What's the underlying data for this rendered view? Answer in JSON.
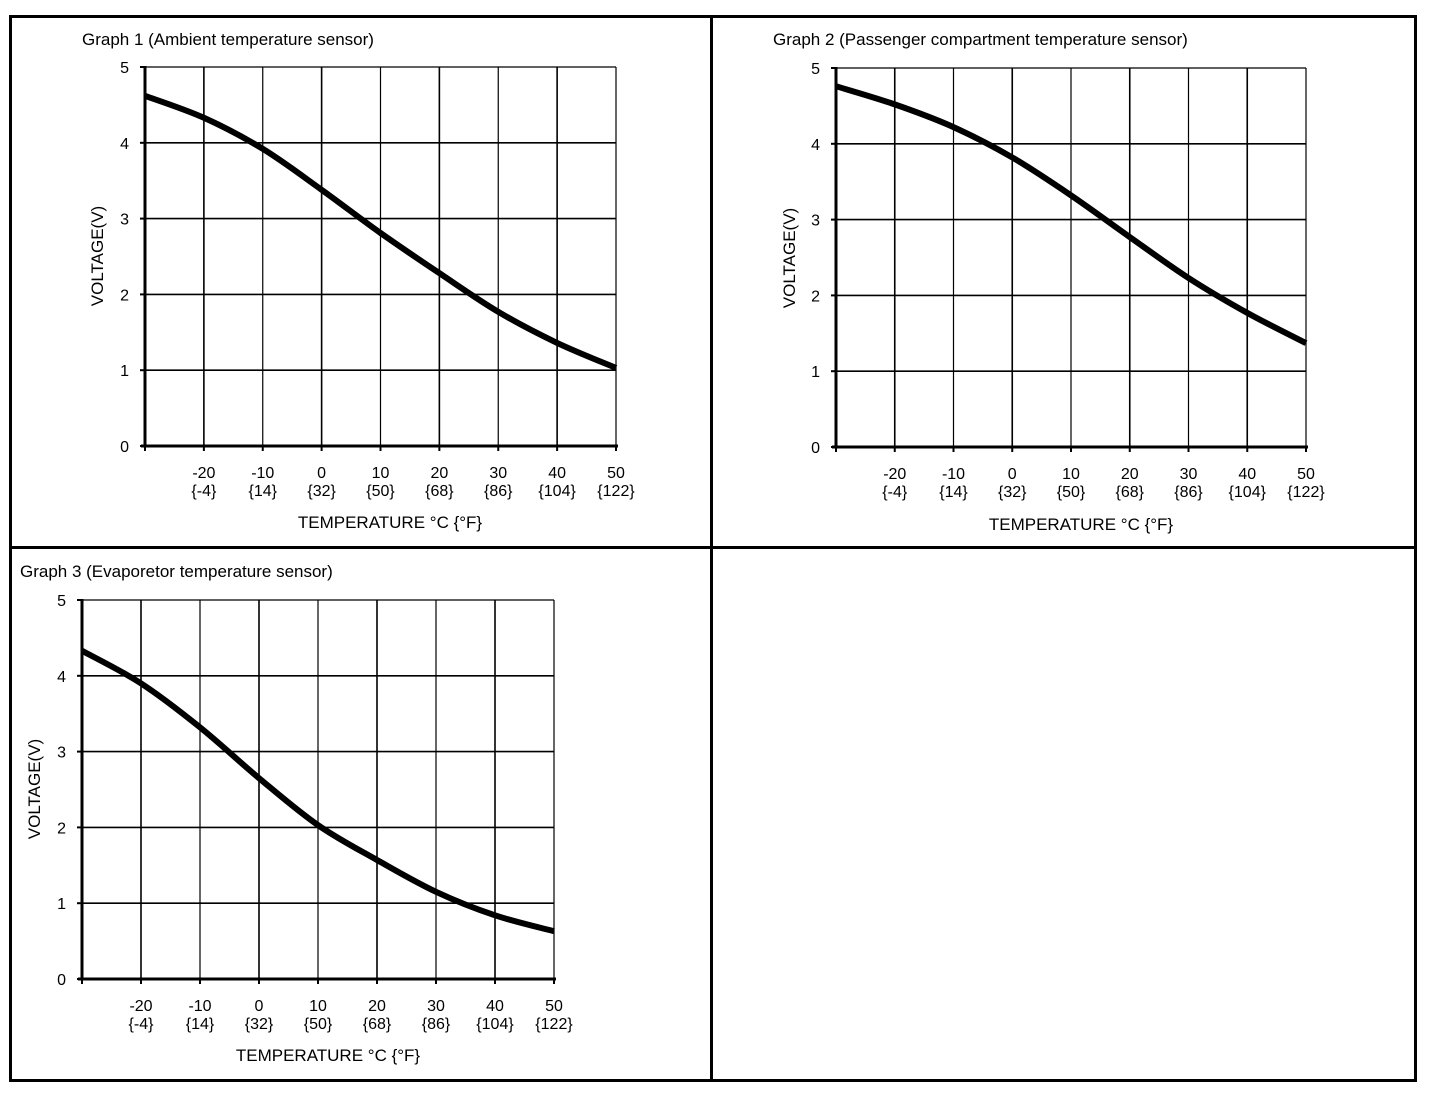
{
  "chart_data": [
    {
      "type": "line",
      "title": "Graph 1 (Ambient temperature sensor)",
      "xlabel": "TEMPERATURE °C {°F}",
      "ylabel": "VOLTAGE(V)",
      "xlim": [
        -30,
        50
      ],
      "ylim": [
        0,
        5
      ],
      "grid": true,
      "x_ticks": [
        -20,
        -10,
        0,
        10,
        20,
        30,
        40,
        50
      ],
      "x_tick_labels_c": [
        "-20",
        "-10",
        "0",
        "10",
        "20",
        "30",
        "40",
        "50"
      ],
      "x_tick_labels_f": [
        "{-4}",
        "{14}",
        "{32}",
        "{50}",
        "{68}",
        "{86}",
        "{104}",
        "{122}"
      ],
      "y_ticks": [
        0,
        1,
        2,
        3,
        4,
        5
      ],
      "y_tick_labels": [
        "0",
        "1",
        "2",
        "3",
        "4",
        "5"
      ],
      "series": [
        {
          "name": "Ambient temperature sensor",
          "x": [
            -30,
            -20,
            -10,
            0,
            10,
            20,
            30,
            40,
            50
          ],
          "y": [
            4.62,
            4.33,
            3.92,
            3.38,
            2.81,
            2.28,
            1.77,
            1.36,
            1.03
          ]
        }
      ]
    },
    {
      "type": "line",
      "title": "Graph 2 (Passenger compartment temperature sensor)",
      "xlabel": "TEMPERATURE °C {°F}",
      "ylabel": "VOLTAGE(V)",
      "xlim": [
        -30,
        50
      ],
      "ylim": [
        0,
        5
      ],
      "grid": true,
      "x_ticks": [
        -20,
        -10,
        0,
        10,
        20,
        30,
        40,
        50
      ],
      "x_tick_labels_c": [
        "-20",
        "-10",
        "0",
        "10",
        "20",
        "30",
        "40",
        "50"
      ],
      "x_tick_labels_f": [
        "{-4}",
        "{14}",
        "{32}",
        "{50}",
        "{68}",
        "{86}",
        "{104}",
        "{122}"
      ],
      "y_ticks": [
        0,
        1,
        2,
        3,
        4,
        5
      ],
      "y_tick_labels": [
        "0",
        "1",
        "2",
        "3",
        "4",
        "5"
      ],
      "series": [
        {
          "name": "Passenger compartment temperature sensor",
          "x": [
            -30,
            -20,
            -10,
            0,
            10,
            20,
            30,
            40,
            50
          ],
          "y": [
            4.76,
            4.52,
            4.22,
            3.82,
            3.32,
            2.77,
            2.23,
            1.77,
            1.37
          ]
        }
      ]
    },
    {
      "type": "line",
      "title": "Graph 3 (Evaporetor temperature sensor)",
      "xlabel": "TEMPERATURE °C {°F}",
      "ylabel": "VOLTAGE(V)",
      "xlim": [
        -30,
        50
      ],
      "ylim": [
        0,
        5
      ],
      "grid": true,
      "x_ticks": [
        -20,
        -10,
        0,
        10,
        20,
        30,
        40,
        50
      ],
      "x_tick_labels_c": [
        "-20",
        "-10",
        "0",
        "10",
        "20",
        "30",
        "40",
        "50"
      ],
      "x_tick_labels_f": [
        "{-4}",
        "{14}",
        "{32}",
        "{50}",
        "{68}",
        "{86}",
        "{104}",
        "{122}"
      ],
      "y_ticks": [
        0,
        1,
        2,
        3,
        4,
        5
      ],
      "y_tick_labels": [
        "0",
        "1",
        "2",
        "3",
        "4",
        "5"
      ],
      "series": [
        {
          "name": "Evaporetor temperature sensor",
          "x": [
            -30,
            -20,
            -10,
            0,
            10,
            20,
            30,
            40,
            50
          ],
          "y": [
            4.33,
            3.9,
            3.32,
            2.65,
            2.03,
            1.57,
            1.15,
            0.84,
            0.63
          ]
        }
      ]
    }
  ],
  "colors": {
    "line": "#000000",
    "grid": "#000000",
    "background": "#ffffff"
  }
}
